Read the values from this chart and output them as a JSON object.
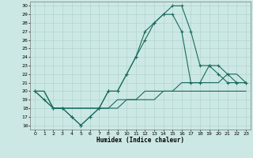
{
  "title": "",
  "xlabel": "Humidex (Indice chaleur)",
  "bg_color": "#cce8e4",
  "grid_color": "#aacfcb",
  "line_color": "#1a6b5e",
  "xlim": [
    -0.5,
    23.5
  ],
  "ylim": [
    15.5,
    30.5
  ],
  "xticks": [
    0,
    1,
    2,
    3,
    4,
    5,
    6,
    7,
    8,
    9,
    10,
    11,
    12,
    13,
    14,
    15,
    16,
    17,
    18,
    19,
    20,
    21,
    22,
    23
  ],
  "yticks": [
    16,
    17,
    18,
    19,
    20,
    21,
    22,
    23,
    24,
    25,
    26,
    27,
    28,
    29,
    30
  ],
  "line_main_x": [
    0,
    1,
    2,
    3,
    4,
    5,
    6,
    7,
    8,
    9,
    10,
    11,
    12,
    13,
    14,
    15,
    16,
    17,
    18,
    19,
    20,
    21,
    22,
    23
  ],
  "line_main_y": [
    20,
    19,
    18,
    18,
    17,
    16,
    17,
    18,
    20,
    20,
    22,
    24,
    27,
    28,
    29,
    30,
    30,
    27,
    23,
    23,
    22,
    21,
    21,
    21
  ],
  "line_low1_x": [
    0,
    1,
    2,
    3,
    4,
    5,
    6,
    7,
    8,
    9,
    10,
    11,
    12,
    13,
    14,
    15,
    16,
    17,
    18,
    19,
    20,
    21,
    22,
    23
  ],
  "line_low1_y": [
    20,
    20,
    18,
    18,
    18,
    18,
    18,
    18,
    18,
    18,
    19,
    19,
    19,
    19,
    20,
    20,
    20,
    20,
    20,
    20,
    20,
    20,
    20,
    20
  ],
  "line_low2_x": [
    0,
    1,
    2,
    3,
    4,
    5,
    6,
    7,
    8,
    9,
    10,
    11,
    12,
    13,
    14,
    15,
    16,
    17,
    18,
    19,
    20,
    21,
    22,
    23
  ],
  "line_low2_y": [
    20,
    20,
    18,
    18,
    18,
    18,
    18,
    18,
    18,
    19,
    19,
    19,
    20,
    20,
    20,
    20,
    21,
    21,
    21,
    21,
    21,
    22,
    22,
    21
  ],
  "line_alt_x": [
    0,
    2,
    3,
    4,
    5,
    6,
    7,
    8,
    9,
    10,
    11,
    12,
    13,
    14,
    15,
    16,
    17,
    18,
    19,
    20,
    21,
    22,
    23
  ],
  "line_alt_y": [
    20,
    18,
    18,
    17,
    16,
    17,
    18,
    20,
    20,
    22,
    24,
    26,
    28,
    29,
    29,
    27,
    21,
    21,
    23,
    23,
    22,
    21,
    21
  ]
}
